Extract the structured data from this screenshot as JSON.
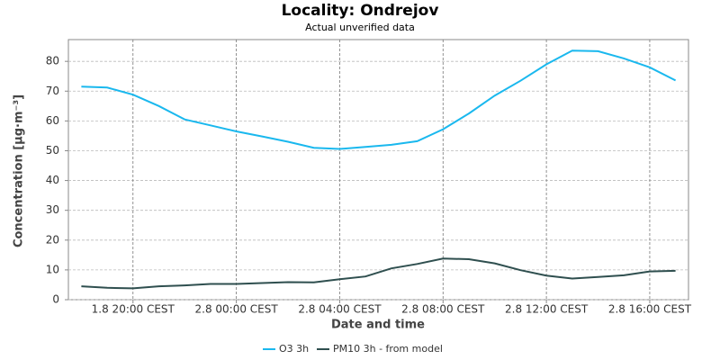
{
  "chart_data": {
    "type": "line",
    "title": "Locality: Ondrejov",
    "subtitle": "Actual unverified data",
    "x_label": "Date and time",
    "y_label": "Concentration [µg·m⁻³]",
    "x": [
      "1.8 18:00 CEST",
      "1.8 19:00 CEST",
      "1.8 20:00 CEST",
      "1.8 21:00 CEST",
      "1.8 22:00 CEST",
      "1.8 23:00 CEST",
      "2.8 00:00 CEST",
      "2.8 01:00 CEST",
      "2.8 02:00 CEST",
      "2.8 03:00 CEST",
      "2.8 04:00 CEST",
      "2.8 05:00 CEST",
      "2.8 06:00 CEST",
      "2.8 07:00 CEST",
      "2.8 08:00 CEST",
      "2.8 09:00 CEST",
      "2.8 10:00 CEST",
      "2.8 11:00 CEST",
      "2.8 12:00 CEST",
      "2.8 13:00 CEST",
      "2.8 14:00 CEST",
      "2.8 15:00 CEST",
      "2.8 16:00 CEST",
      "2.8 17:00 CEST"
    ],
    "series": [
      {
        "name": "O3 3h",
        "color": "#1ab8ee",
        "values": [
          71.5,
          71.2,
          68.8,
          65,
          60.5,
          58.5,
          56.5,
          54.8,
          53,
          51,
          50.6,
          51.3,
          52,
          53.2,
          57.2,
          62.5,
          68.5,
          73.5,
          79,
          83.6,
          83.4,
          81,
          78,
          73.6
        ]
      },
      {
        "name": "PM10 3h - from model",
        "color": "#2f4f4f",
        "values": [
          4.5,
          4,
          3.8,
          4.5,
          4.8,
          5.3,
          5.3,
          5.6,
          5.9,
          5.8,
          6.9,
          7.8,
          10.5,
          12,
          13.8,
          13.6,
          12.2,
          9.9,
          8.1,
          7.1,
          7.6,
          8.2,
          9.5,
          9.7
        ]
      }
    ],
    "xlim": [
      "1.8 17:30 CEST",
      "2.8 17:30 CEST"
    ],
    "xticks": [
      "1.8 20:00 CEST",
      "2.8 00:00 CEST",
      "2.8 04:00 CEST",
      "2.8 08:00 CEST",
      "2.8 12:00 CEST",
      "2.8 16:00 CEST"
    ],
    "ylim": [
      0,
      87.3
    ],
    "yticks": [
      0,
      10,
      20,
      30,
      40,
      50,
      60,
      70,
      80
    ],
    "grid": true,
    "legend": "bottom"
  }
}
